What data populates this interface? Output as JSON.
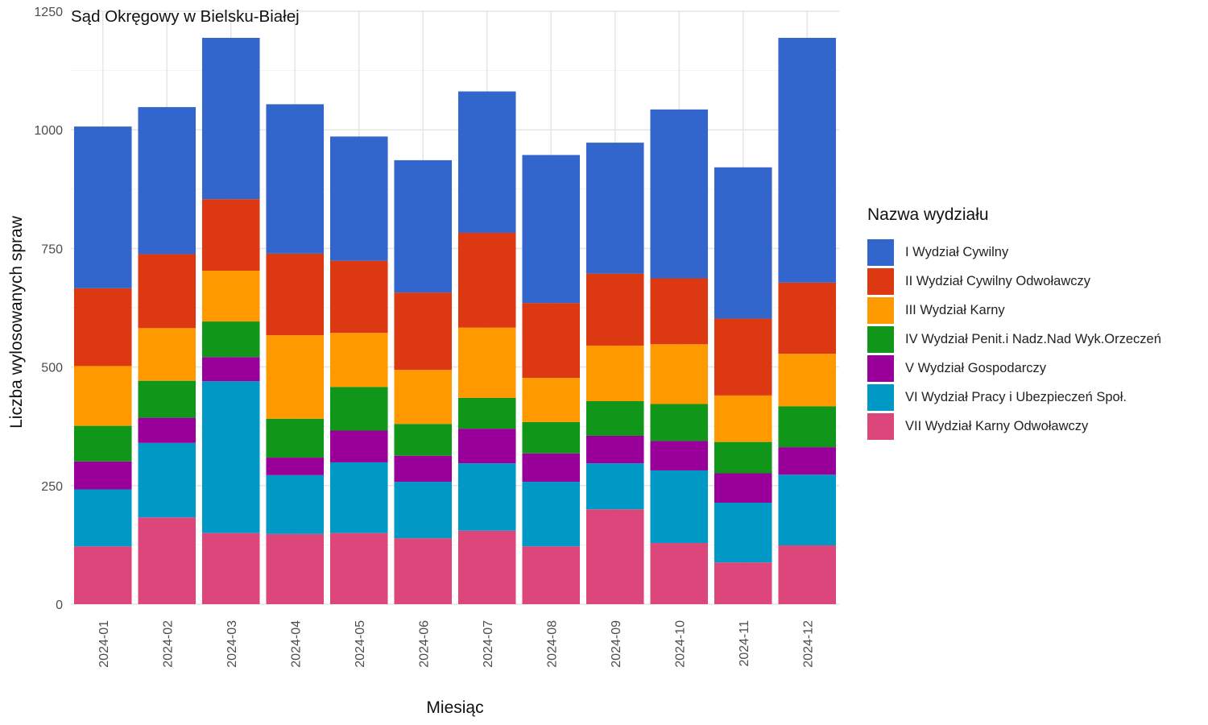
{
  "chart_data": {
    "type": "bar",
    "stacked": true,
    "title": "Sąd Okręgowy w Bielsku-Białej",
    "xlabel": "Miesiąc",
    "ylabel": "Liczba wylosowanych spraw",
    "ylim": [
      0,
      1250
    ],
    "yticks": [
      0,
      250,
      500,
      750,
      1000,
      1250
    ],
    "grid": true,
    "legend_title": "Nazwa wydziału",
    "legend_position": "right",
    "categories": [
      "2024-01",
      "2024-02",
      "2024-03",
      "2024-04",
      "2024-05",
      "2024-06",
      "2024-07",
      "2024-08",
      "2024-09",
      "2024-10",
      "2024-11",
      "2024-12"
    ],
    "series": [
      {
        "name": "VII Wydział Karny Odwoławczy",
        "color": "#DD467A",
        "values": [
          122,
          183,
          150,
          148,
          150,
          139,
          155,
          122,
          200,
          129,
          88,
          124
        ]
      },
      {
        "name": "VI Wydział Pracy i Ubezpieczeń Społ.",
        "color": "#0099C6",
        "values": [
          120,
          157,
          320,
          124,
          149,
          119,
          142,
          136,
          97,
          153,
          126,
          149
        ]
      },
      {
        "name": "V Wydział Gospodarczy",
        "color": "#990099",
        "values": [
          59,
          53,
          51,
          37,
          67,
          55,
          73,
          60,
          58,
          62,
          62,
          58
        ]
      },
      {
        "name": "IV Wydział Penit.i Nadz.Nad Wyk.Orzeczeń",
        "color": "#109618",
        "values": [
          75,
          78,
          75,
          82,
          92,
          67,
          65,
          66,
          73,
          78,
          66,
          86
        ]
      },
      {
        "name": "III Wydział Karny",
        "color": "#FF9900",
        "values": [
          126,
          111,
          107,
          176,
          114,
          114,
          148,
          93,
          117,
          126,
          98,
          111
        ]
      },
      {
        "name": "II Wydział Cywilny Odwoławczy",
        "color": "#DC3912",
        "values": [
          164,
          156,
          151,
          172,
          152,
          163,
          200,
          158,
          152,
          139,
          162,
          150
        ]
      },
      {
        "name": "I Wydział Cywilny",
        "color": "#3366CC",
        "values": [
          341,
          310,
          340,
          315,
          262,
          279,
          298,
          312,
          276,
          356,
          319,
          516
        ]
      }
    ]
  }
}
